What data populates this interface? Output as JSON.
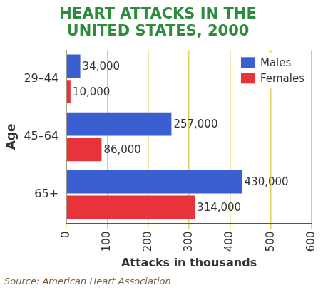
{
  "chart_data": {
    "type": "bar",
    "orientation": "horizontal",
    "title": [
      "HEART ATTACKS IN THE",
      "UNITED STATES, 2000"
    ],
    "x_label": "Attacks in thousands",
    "y_label": "Age",
    "source": "Source: American Heart Association",
    "categories": [
      "29–44",
      "45–64",
      "65+"
    ],
    "series": [
      {
        "name": "Males",
        "color": "#3a5fd0",
        "values": [
          34,
          257,
          430
        ],
        "value_labels": [
          "34,000",
          "257,000",
          "430,000"
        ]
      },
      {
        "name": "Females",
        "color": "#e8323c",
        "values": [
          10,
          86,
          314
        ],
        "value_labels": [
          "10,000",
          "86,000",
          "314,000"
        ]
      }
    ],
    "xlim": [
      0,
      600
    ],
    "xticks": [
      0,
      100,
      200,
      300,
      400,
      500,
      600
    ],
    "grid": true,
    "legend": "upper right",
    "data_labels": true
  }
}
